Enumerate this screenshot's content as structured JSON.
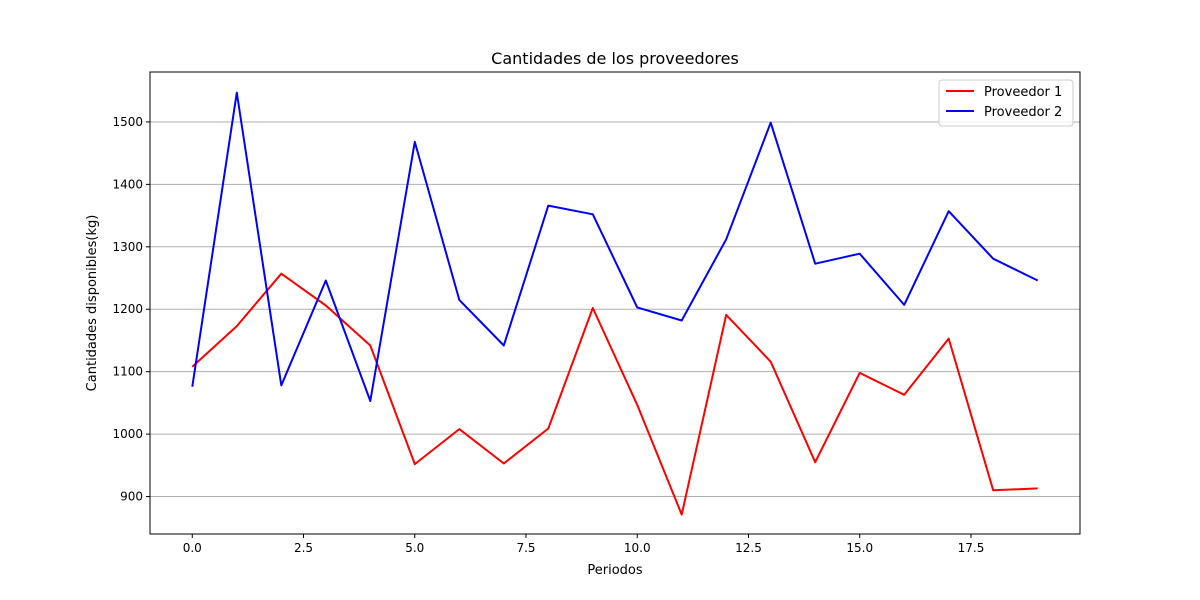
{
  "chart_data": {
    "type": "line",
    "title": "Cantidades de los proveedores",
    "xlabel": "Periodos",
    "ylabel": "Cantidades disponibles(kg)",
    "x": [
      0,
      1,
      2,
      3,
      4,
      5,
      6,
      7,
      8,
      9,
      10,
      11,
      12,
      13,
      14,
      15,
      16,
      17,
      18,
      19
    ],
    "xlim": [
      -0.95,
      19.95
    ],
    "ylim": [
      840,
      1580
    ],
    "xticks": [
      0.0,
      2.5,
      5.0,
      7.5,
      10.0,
      12.5,
      15.0,
      17.5
    ],
    "xtick_labels": [
      "0.0",
      "2.5",
      "5.0",
      "7.5",
      "10.0",
      "12.5",
      "15.0",
      "17.5"
    ],
    "yticks": [
      900,
      1000,
      1100,
      1200,
      1300,
      1400,
      1500
    ],
    "ytick_labels": [
      "900",
      "1000",
      "1100",
      "1200",
      "1300",
      "1400",
      "1500"
    ],
    "grid": "y-axis only",
    "legend_position": "top-right",
    "series": [
      {
        "name": "Proveedor 1",
        "color": "#ff0000",
        "values": [
          1108,
          1173,
          1257,
          1206,
          1142,
          952,
          1008,
          953,
          1009,
          1202,
          1047,
          871,
          1191,
          1116,
          955,
          1098,
          1063,
          1153,
          910,
          913
        ]
      },
      {
        "name": "Proveedor 2",
        "color": "#0000ff",
        "values": [
          1076,
          1547,
          1078,
          1246,
          1053,
          1468,
          1215,
          1142,
          1366,
          1352,
          1203,
          1182,
          1312,
          1499,
          1273,
          1289,
          1207,
          1357,
          1281,
          1246
        ]
      }
    ]
  }
}
